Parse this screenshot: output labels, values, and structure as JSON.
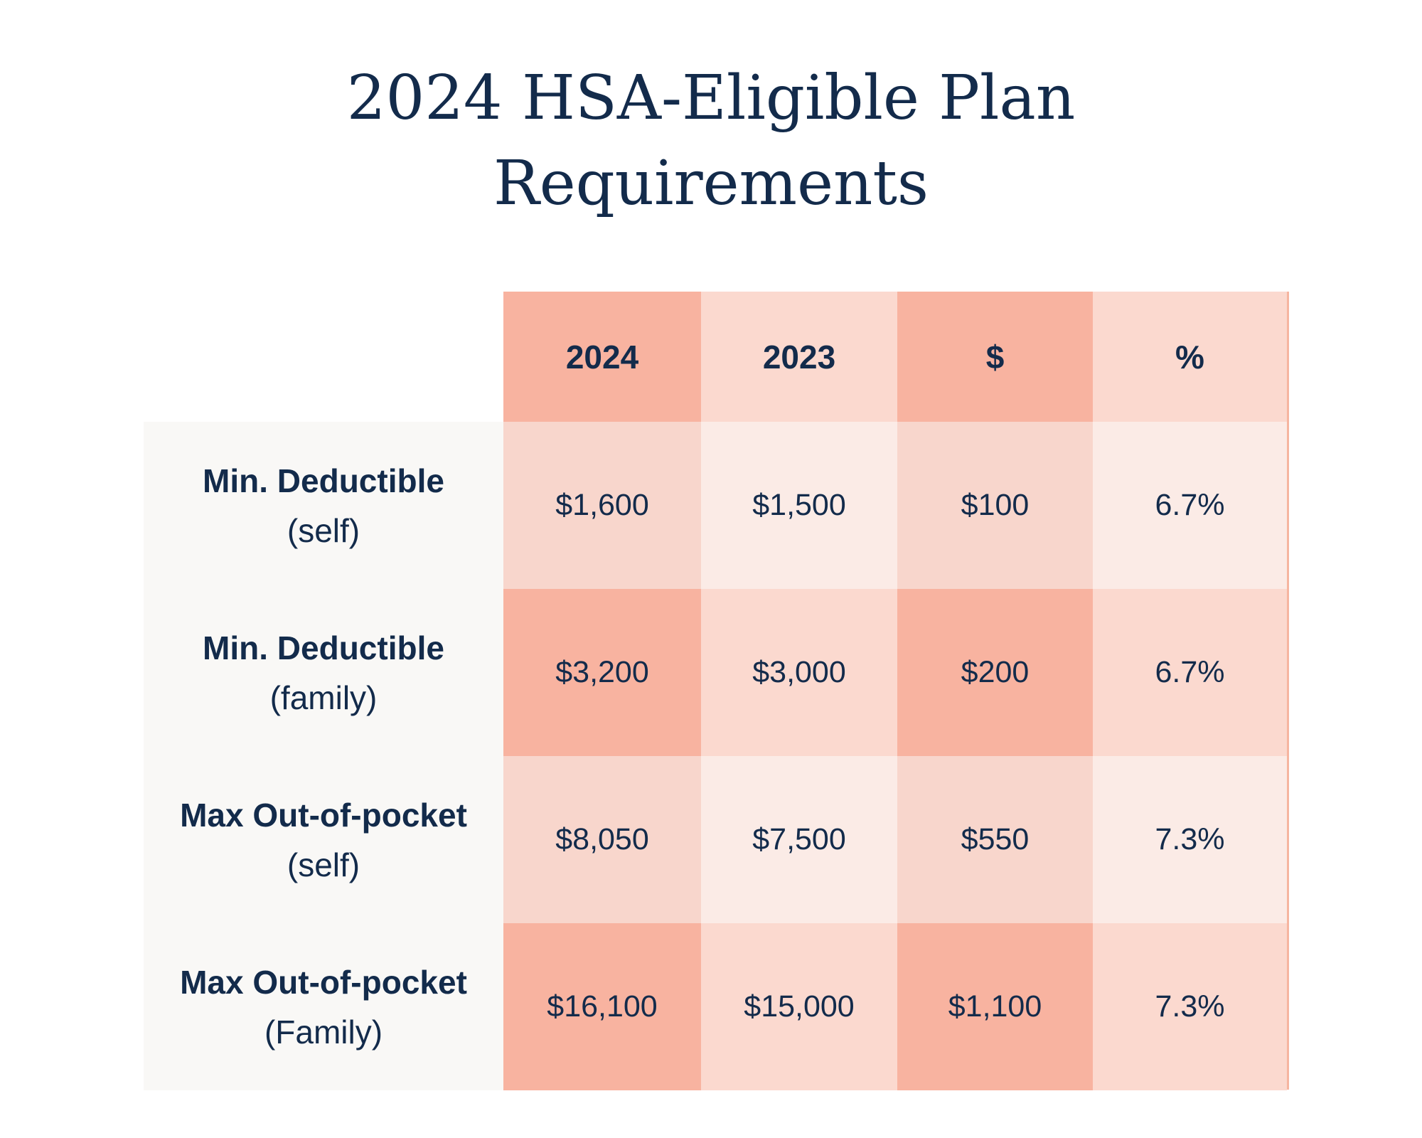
{
  "title_lines": [
    "2024 HSA-Eligible Plan",
    "Requirements"
  ],
  "colors": {
    "text": "#132b4b",
    "header_dark": "#f8b3a0",
    "header_light": "#fbd9cf",
    "label_bg": "#f9f8f6",
    "row_a_dark": "#f8d6cc",
    "row_a_light": "#fbebe6",
    "row_b_dark": "#f8b3a0",
    "row_b_light": "#fbd9cf"
  },
  "chart_data": {
    "type": "table",
    "title": "2024 HSA-Eligible Plan Requirements",
    "columns": [
      "2024",
      "2023",
      "$",
      "%"
    ],
    "rows": [
      {
        "label": "Min. Deductible",
        "sublabel": "(self)",
        "values": [
          "$1,600",
          "$1,500",
          "$100",
          "6.7%"
        ]
      },
      {
        "label": "Min. Deductible",
        "sublabel": "(family)",
        "values": [
          "$3,200",
          "$3,000",
          "$200",
          "6.7%"
        ]
      },
      {
        "label": "Max Out-of-pocket",
        "sublabel": "(self)",
        "values": [
          "$8,050",
          "$7,500",
          "$550",
          "7.3%"
        ]
      },
      {
        "label": "Max Out-of-pocket",
        "sublabel": "(Family)",
        "values": [
          "$16,100",
          "$15,000",
          "$1,100",
          "7.3%"
        ]
      }
    ]
  }
}
